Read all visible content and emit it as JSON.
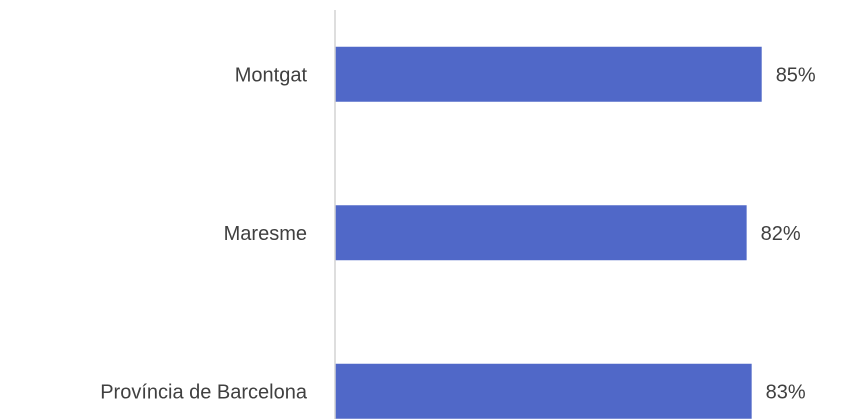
{
  "chart_data": {
    "type": "bar",
    "orientation": "horizontal",
    "categories": [
      "Montgat",
      "Maresme",
      "Província de Barcelona"
    ],
    "values": [
      85,
      82,
      83
    ],
    "value_labels": [
      "85%",
      "82%",
      "83%"
    ],
    "color": "#5068c8",
    "xlim": [
      0,
      100
    ]
  }
}
